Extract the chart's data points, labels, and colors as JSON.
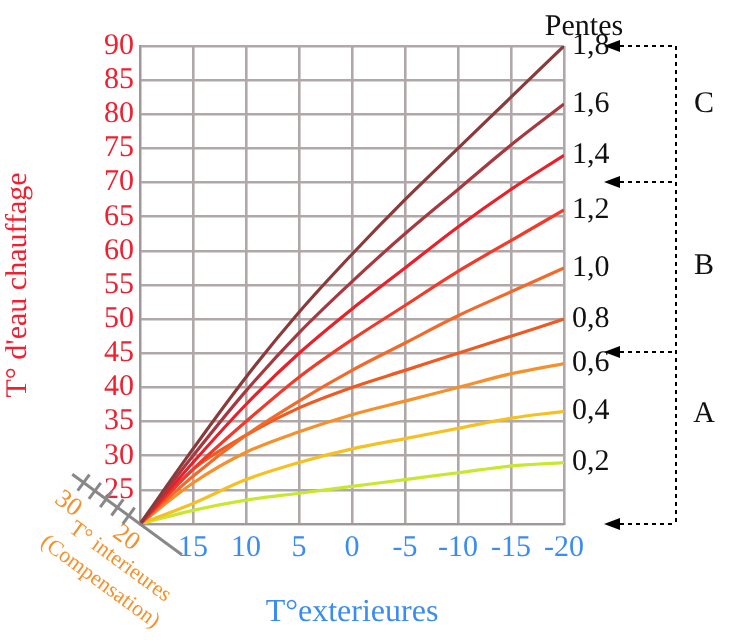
{
  "chart_data": {
    "type": "line",
    "xlabel": "T°exterieures",
    "ylabel": "T° d'eau chauffage",
    "legend_title": "Pentes",
    "x": [
      20,
      15,
      10,
      5,
      0,
      -5,
      -10,
      -15,
      -20
    ],
    "xlim": [
      20,
      -20
    ],
    "xticks": [
      {
        "value": 20,
        "label": null
      },
      15,
      10,
      5,
      0,
      -5,
      -10,
      -15,
      -20
    ],
    "ylim": [
      20,
      90
    ],
    "yticks": [
      {
        "value": 20,
        "label": null
      },
      25,
      30,
      35,
      40,
      45,
      50,
      55,
      60,
      65,
      70,
      75,
      80,
      85,
      90
    ],
    "grid": true,
    "legend": false,
    "marker": "none",
    "line_style": "solid",
    "series": [
      {
        "name": "1,8",
        "color": "#8b3a3a",
        "values": [
          20,
          31,
          41.5,
          51,
          59.5,
          67.5,
          75,
          82.5,
          90
        ]
      },
      {
        "name": "1,6",
        "color": "#a83840",
        "values": [
          20,
          30,
          39.5,
          48,
          55.5,
          62.5,
          69,
          75.5,
          81.5
        ]
      },
      {
        "name": "1,4",
        "color": "#e8202a",
        "values": [
          20,
          29,
          37.5,
          45,
          51.5,
          57.5,
          63.5,
          69,
          74
        ]
      },
      {
        "name": "1,2",
        "color": "#f03a2a",
        "values": [
          20,
          28,
          35,
          41.5,
          47,
          52,
          57,
          61.5,
          66
        ]
      },
      {
        "name": "1,0",
        "color": "#f26a2a",
        "values": [
          20,
          27,
          33,
          38,
          42.5,
          46.5,
          50.5,
          54,
          57.5
        ]
      },
      {
        "name": "0,8",
        "color": "#f05a20",
        "values": [
          20,
          28,
          33,
          37,
          40,
          42.5,
          45,
          47.5,
          50
        ]
      },
      {
        "name": "0,6",
        "color": "#f5902a",
        "values": [
          20,
          26,
          30.5,
          33.5,
          36,
          38,
          40,
          42,
          43.5
        ]
      },
      {
        "name": "0,4",
        "color": "#f5c020",
        "values": [
          20,
          23,
          26.5,
          29,
          31,
          32.5,
          34,
          35.5,
          36.5
        ]
      },
      {
        "name": "0,2",
        "color": "#c8e830",
        "values": [
          20,
          22,
          23.5,
          24.5,
          25.5,
          26.5,
          27.5,
          28.5,
          29
        ]
      }
    ],
    "annotations": [
      "C",
      "B",
      "A",
      "30",
      "20",
      "T° interieures",
      "(Compensation)"
    ]
  }
}
